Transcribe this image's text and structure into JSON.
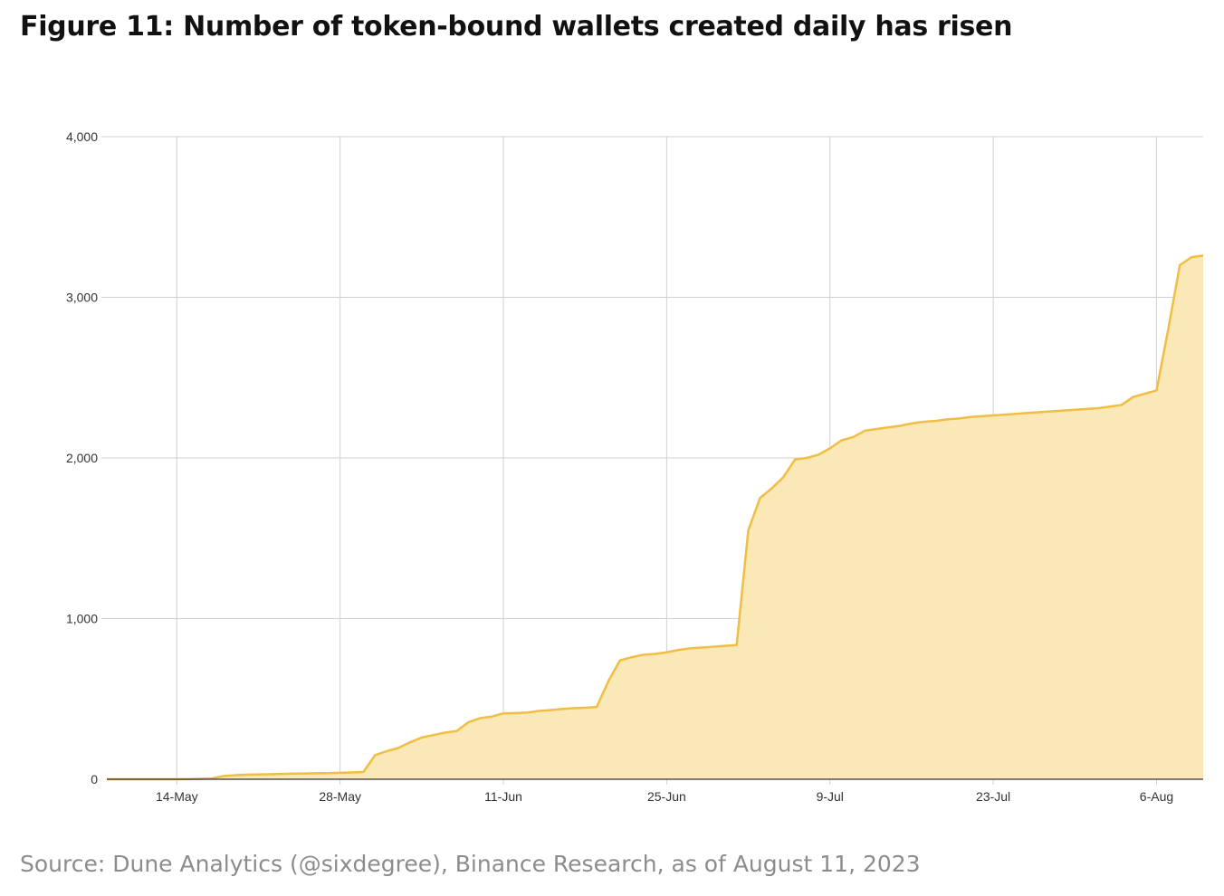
{
  "figure_title": "Figure 11: Number of token-bound wallets created daily has risen",
  "source_note": "Source: Dune Analytics (@sixdegree), Binance Research, as of August 11, 2023",
  "colors": {
    "line": "#f0bd45",
    "fill": "#fae9b6",
    "grid": "#d0d0d0",
    "axis": "#333333"
  },
  "chart_data": {
    "type": "area",
    "title": "Figure 11: Number of token-bound wallets created daily has risen",
    "xlabel": "",
    "ylabel": "",
    "x_ticks": [
      "14-May",
      "28-May",
      "11-Jun",
      "25-Jun",
      "9-Jul",
      "23-Jul",
      "6-Aug"
    ],
    "x_tick_dates": [
      "2023-05-14",
      "2023-05-28",
      "2023-06-11",
      "2023-06-25",
      "2023-07-09",
      "2023-07-23",
      "2023-08-06"
    ],
    "y_ticks": [
      "0",
      "1,000",
      "2,000",
      "3,000",
      "4,000"
    ],
    "ylim": [
      0,
      4000
    ],
    "xlim": [
      "2023-05-08",
      "2023-08-10"
    ],
    "grid": true,
    "legend": "none",
    "series": [
      {
        "x": [
          "2023-05-08",
          "2023-05-09",
          "2023-05-10",
          "2023-05-11",
          "2023-05-12",
          "2023-05-13",
          "2023-05-14",
          "2023-05-15",
          "2023-05-16",
          "2023-05-17",
          "2023-05-18",
          "2023-05-19",
          "2023-05-20",
          "2023-05-21",
          "2023-05-22",
          "2023-05-23",
          "2023-05-24",
          "2023-05-25",
          "2023-05-26",
          "2023-05-27",
          "2023-05-28",
          "2023-05-29",
          "2023-05-30",
          "2023-05-31",
          "2023-06-01",
          "2023-06-02",
          "2023-06-03",
          "2023-06-04",
          "2023-06-05",
          "2023-06-06",
          "2023-06-07",
          "2023-06-08",
          "2023-06-09",
          "2023-06-10",
          "2023-06-11",
          "2023-06-12",
          "2023-06-13",
          "2023-06-14",
          "2023-06-15",
          "2023-06-16",
          "2023-06-17",
          "2023-06-18",
          "2023-06-19",
          "2023-06-20",
          "2023-06-21",
          "2023-06-22",
          "2023-06-23",
          "2023-06-24",
          "2023-06-25",
          "2023-06-26",
          "2023-06-27",
          "2023-06-28",
          "2023-06-29",
          "2023-06-30",
          "2023-07-01",
          "2023-07-02",
          "2023-07-03",
          "2023-07-04",
          "2023-07-05",
          "2023-07-06",
          "2023-07-07",
          "2023-07-08",
          "2023-07-09",
          "2023-07-10",
          "2023-07-11",
          "2023-07-12",
          "2023-07-13",
          "2023-07-14",
          "2023-07-15",
          "2023-07-16",
          "2023-07-17",
          "2023-07-18",
          "2023-07-19",
          "2023-07-20",
          "2023-07-21",
          "2023-07-22",
          "2023-07-23",
          "2023-07-24",
          "2023-07-25",
          "2023-07-26",
          "2023-07-27",
          "2023-07-28",
          "2023-07-29",
          "2023-07-30",
          "2023-07-31",
          "2023-08-01",
          "2023-08-02",
          "2023-08-03",
          "2023-08-04",
          "2023-08-05",
          "2023-08-06",
          "2023-08-07",
          "2023-08-08",
          "2023-08-09",
          "2023-08-10"
        ],
        "y": [
          0,
          0,
          0,
          0,
          0,
          0,
          0,
          1,
          3,
          5,
          20,
          25,
          28,
          30,
          31,
          33,
          35,
          36,
          37,
          38,
          40,
          42,
          45,
          150,
          175,
          195,
          230,
          260,
          275,
          290,
          300,
          355,
          380,
          390,
          410,
          412,
          415,
          425,
          430,
          437,
          442,
          445,
          450,
          610,
          740,
          760,
          775,
          780,
          790,
          805,
          815,
          820,
          825,
          830,
          835,
          1550,
          1750,
          1810,
          1880,
          1990,
          2000,
          2020,
          2060,
          2110,
          2130,
          2170,
          2180,
          2190,
          2200,
          2215,
          2225,
          2230,
          2240,
          2245,
          2255,
          2260,
          2265,
          2270,
          2275,
          2280,
          2285,
          2290,
          2295,
          2300,
          2305,
          2310,
          2320,
          2330,
          2380,
          2400,
          2420,
          2800,
          3200,
          3250,
          3260
        ]
      }
    ]
  }
}
